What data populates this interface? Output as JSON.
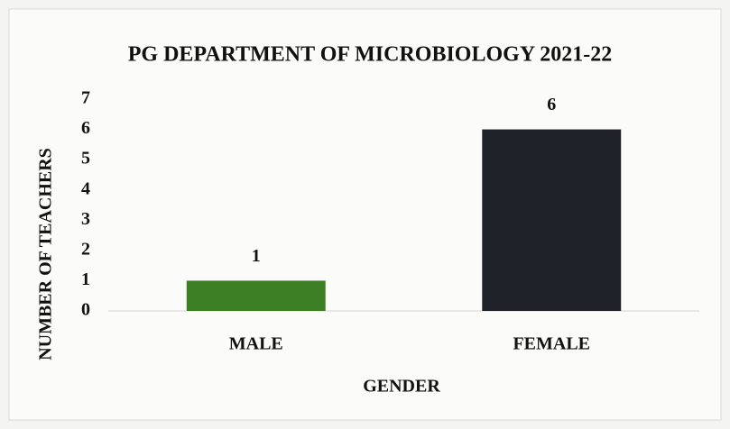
{
  "chart_data": {
    "type": "bar",
    "title": "PG DEPARTMENT OF MICROBIOLOGY 2021-22",
    "categories": [
      "MALE",
      "FEMALE"
    ],
    "values": [
      1,
      6
    ],
    "colors": [
      "#3d7f25",
      "#1e2228"
    ],
    "xlabel": "GENDER",
    "ylabel": "NUMBER OF TEACHERS",
    "ylim": [
      0,
      7
    ],
    "yticks": [
      0,
      1,
      2,
      3,
      4,
      5,
      6,
      7
    ],
    "grid": false
  }
}
